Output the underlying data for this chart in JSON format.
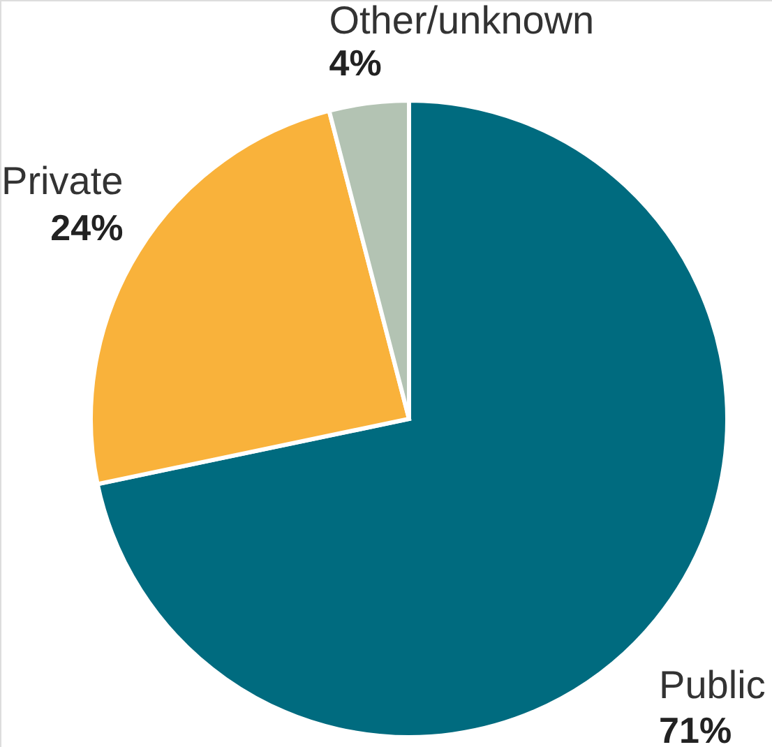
{
  "chart_data": {
    "type": "pie",
    "categories": [
      "Public",
      "Private",
      "Other/unknown"
    ],
    "values": [
      71,
      24,
      4
    ],
    "colors": [
      "#006b7f",
      "#f9b23b",
      "#b3c3b3"
    ],
    "value_labels": [
      "71%",
      "24%",
      "4%"
    ]
  }
}
